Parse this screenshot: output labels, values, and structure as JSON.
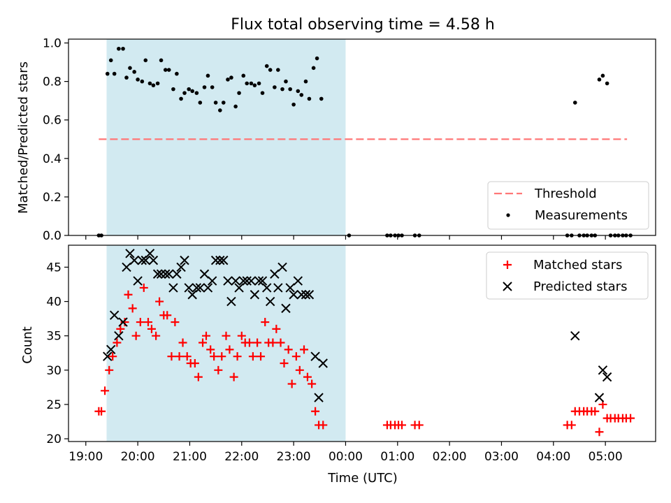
{
  "chart_data": [
    {
      "type": "scatter",
      "title": "Flux total observing time = 4.58 h",
      "ylabel": "Matched/Predicted stars",
      "xlim": [
        "18:40",
        "05:58"
      ],
      "ylim": [
        0,
        1.02
      ],
      "yticks": [
        "0.0",
        "0.2",
        "0.4",
        "0.6",
        "0.8",
        "1.0"
      ],
      "highlight_span": {
        "start": "19:24",
        "end": "00:00",
        "color": "#add8e6"
      },
      "threshold": {
        "value": 0.5,
        "from": "19:15",
        "to": "05:25",
        "color": "#ff7777"
      },
      "legend": {
        "position": "lower right",
        "entries": [
          "Threshold",
          "Measurements"
        ]
      },
      "series": [
        {
          "name": "Measurements",
          "marker": "dot",
          "color": "#000000",
          "points": [
            [
              "19:15",
              0.0
            ],
            [
              "19:18",
              0.0
            ],
            [
              "19:25",
              0.84
            ],
            [
              "19:29",
              0.91
            ],
            [
              "19:33",
              0.84
            ],
            [
              "19:38",
              0.97
            ],
            [
              "19:43",
              0.97
            ],
            [
              "19:47",
              0.82
            ],
            [
              "19:51",
              0.87
            ],
            [
              "19:56",
              0.85
            ],
            [
              "20:00",
              0.81
            ],
            [
              "20:05",
              0.8
            ],
            [
              "20:09",
              0.91
            ],
            [
              "20:14",
              0.79
            ],
            [
              "20:18",
              0.78
            ],
            [
              "20:23",
              0.79
            ],
            [
              "20:27",
              0.91
            ],
            [
              "20:32",
              0.86
            ],
            [
              "20:36",
              0.86
            ],
            [
              "20:41",
              0.76
            ],
            [
              "20:45",
              0.84
            ],
            [
              "20:50",
              0.71
            ],
            [
              "20:54",
              0.74
            ],
            [
              "20:59",
              0.76
            ],
            [
              "21:03",
              0.75
            ],
            [
              "21:08",
              0.74
            ],
            [
              "21:12",
              0.69
            ],
            [
              "21:17",
              0.77
            ],
            [
              "21:21",
              0.83
            ],
            [
              "21:26",
              0.77
            ],
            [
              "21:30",
              0.69
            ],
            [
              "21:35",
              0.65
            ],
            [
              "21:39",
              0.69
            ],
            [
              "21:44",
              0.81
            ],
            [
              "21:48",
              0.82
            ],
            [
              "21:53",
              0.67
            ],
            [
              "21:57",
              0.74
            ],
            [
              "22:02",
              0.83
            ],
            [
              "22:06",
              0.79
            ],
            [
              "22:11",
              0.79
            ],
            [
              "22:15",
              0.78
            ],
            [
              "22:20",
              0.79
            ],
            [
              "22:24",
              0.74
            ],
            [
              "22:29",
              0.88
            ],
            [
              "22:33",
              0.86
            ],
            [
              "22:38",
              0.77
            ],
            [
              "22:42",
              0.86
            ],
            [
              "22:47",
              0.76
            ],
            [
              "22:51",
              0.8
            ],
            [
              "22:56",
              0.76
            ],
            [
              "23:00",
              0.68
            ],
            [
              "23:05",
              0.75
            ],
            [
              "23:09",
              0.73
            ],
            [
              "23:14",
              0.8
            ],
            [
              "23:18",
              0.71
            ],
            [
              "23:23",
              0.87
            ],
            [
              "23:27",
              0.92
            ],
            [
              "23:32",
              0.71
            ],
            [
              "00:04",
              0.0
            ],
            [
              "00:48",
              0.0
            ],
            [
              "00:52",
              0.0
            ],
            [
              "00:57",
              0.0
            ],
            [
              "01:01",
              0.0
            ],
            [
              "01:05",
              0.0
            ],
            [
              "01:20",
              0.0
            ],
            [
              "01:25",
              0.0
            ],
            [
              "04:16",
              0.0
            ],
            [
              "04:21",
              0.0
            ],
            [
              "04:25",
              0.69
            ],
            [
              "04:30",
              0.0
            ],
            [
              "04:35",
              0.0
            ],
            [
              "04:39",
              0.0
            ],
            [
              "04:44",
              0.0
            ],
            [
              "04:48",
              0.0
            ],
            [
              "04:53",
              0.81
            ],
            [
              "04:57",
              0.83
            ],
            [
              "05:02",
              0.79
            ],
            [
              "05:06",
              0.0
            ],
            [
              "05:11",
              0.0
            ],
            [
              "05:15",
              0.0
            ],
            [
              "05:20",
              0.0
            ],
            [
              "05:24",
              0.0
            ],
            [
              "05:29",
              0.0
            ]
          ]
        }
      ]
    },
    {
      "type": "scatter",
      "xlabel": "Time (UTC)",
      "ylabel": "Count",
      "xlim": [
        "18:40",
        "05:58"
      ],
      "ylim": [
        19.6,
        48.2
      ],
      "yticks": [
        "20",
        "25",
        "30",
        "35",
        "40",
        "45"
      ],
      "xticks": [
        "19:00",
        "20:00",
        "21:00",
        "22:00",
        "23:00",
        "00:00",
        "01:00",
        "02:00",
        "03:00",
        "04:00",
        "05:00"
      ],
      "highlight_span": {
        "start": "19:24",
        "end": "00:00",
        "color": "#add8e6"
      },
      "legend": {
        "position": "upper right",
        "entries": [
          "Matched stars",
          "Predicted stars"
        ]
      },
      "series": [
        {
          "name": "Matched stars",
          "marker": "plus",
          "color": "#ff0000",
          "points": [
            [
              "19:15",
              24
            ],
            [
              "19:18",
              24
            ],
            [
              "19:22",
              27
            ],
            [
              "19:27",
              30
            ],
            [
              "19:31",
              32
            ],
            [
              "19:36",
              34
            ],
            [
              "19:40",
              36
            ],
            [
              "19:45",
              37
            ],
            [
              "19:49",
              41
            ],
            [
              "19:54",
              39
            ],
            [
              "19:58",
              35
            ],
            [
              "20:03",
              37
            ],
            [
              "20:07",
              42
            ],
            [
              "20:12",
              37
            ],
            [
              "20:16",
              36
            ],
            [
              "20:21",
              35
            ],
            [
              "20:25",
              40
            ],
            [
              "20:30",
              38
            ],
            [
              "20:34",
              38
            ],
            [
              "20:39",
              32
            ],
            [
              "20:43",
              37
            ],
            [
              "20:48",
              32
            ],
            [
              "20:52",
              34
            ],
            [
              "20:57",
              32
            ],
            [
              "21:01",
              31
            ],
            [
              "21:06",
              31
            ],
            [
              "21:10",
              29
            ],
            [
              "21:15",
              34
            ],
            [
              "21:19",
              35
            ],
            [
              "21:24",
              33
            ],
            [
              "21:28",
              32
            ],
            [
              "21:33",
              30
            ],
            [
              "21:37",
              32
            ],
            [
              "21:42",
              35
            ],
            [
              "21:46",
              33
            ],
            [
              "21:51",
              29
            ],
            [
              "21:55",
              32
            ],
            [
              "22:00",
              35
            ],
            [
              "22:04",
              34
            ],
            [
              "22:09",
              34
            ],
            [
              "22:13",
              32
            ],
            [
              "22:18",
              34
            ],
            [
              "22:22",
              32
            ],
            [
              "22:27",
              37
            ],
            [
              "22:31",
              34
            ],
            [
              "22:36",
              34
            ],
            [
              "22:40",
              36
            ],
            [
              "22:45",
              34
            ],
            [
              "22:49",
              31
            ],
            [
              "22:54",
              33
            ],
            [
              "22:58",
              28
            ],
            [
              "23:03",
              32
            ],
            [
              "23:07",
              30
            ],
            [
              "23:12",
              33
            ],
            [
              "23:16",
              29
            ],
            [
              "23:21",
              28
            ],
            [
              "23:25",
              24
            ],
            [
              "23:29",
              22
            ],
            [
              "23:34",
              22
            ],
            [
              "00:48",
              22
            ],
            [
              "00:52",
              22
            ],
            [
              "00:57",
              22
            ],
            [
              "01:01",
              22
            ],
            [
              "01:05",
              22
            ],
            [
              "01:20",
              22
            ],
            [
              "01:25",
              22
            ],
            [
              "04:16",
              22
            ],
            [
              "04:21",
              22
            ],
            [
              "04:25",
              24
            ],
            [
              "04:30",
              24
            ],
            [
              "04:35",
              24
            ],
            [
              "04:39",
              24
            ],
            [
              "04:44",
              24
            ],
            [
              "04:48",
              24
            ],
            [
              "04:53",
              21
            ],
            [
              "04:57",
              25
            ],
            [
              "05:02",
              23
            ],
            [
              "05:06",
              23
            ],
            [
              "05:11",
              23
            ],
            [
              "05:15",
              23
            ],
            [
              "05:20",
              23
            ],
            [
              "05:24",
              23
            ],
            [
              "05:29",
              23
            ]
          ]
        },
        {
          "name": "Predicted stars",
          "marker": "x",
          "color": "#000000",
          "points": [
            [
              "19:25",
              32
            ],
            [
              "19:29",
              33
            ],
            [
              "19:33",
              38
            ],
            [
              "19:38",
              35
            ],
            [
              "19:43",
              37
            ],
            [
              "19:47",
              45
            ],
            [
              "19:51",
              47
            ],
            [
              "19:56",
              46
            ],
            [
              "20:00",
              43
            ],
            [
              "20:05",
              46
            ],
            [
              "20:09",
              46
            ],
            [
              "20:14",
              47
            ],
            [
              "20:18",
              46
            ],
            [
              "20:23",
              44
            ],
            [
              "20:27",
              44
            ],
            [
              "20:32",
              44
            ],
            [
              "20:36",
              44
            ],
            [
              "20:41",
              42
            ],
            [
              "20:45",
              44
            ],
            [
              "20:50",
              45
            ],
            [
              "20:54",
              46
            ],
            [
              "20:59",
              42
            ],
            [
              "21:03",
              41
            ],
            [
              "21:08",
              42
            ],
            [
              "21:12",
              42
            ],
            [
              "21:17",
              44
            ],
            [
              "21:21",
              42
            ],
            [
              "21:26",
              43
            ],
            [
              "21:30",
              46
            ],
            [
              "21:35",
              46
            ],
            [
              "21:39",
              46
            ],
            [
              "21:44",
              43
            ],
            [
              "21:48",
              40
            ],
            [
              "21:53",
              43
            ],
            [
              "21:57",
              42
            ],
            [
              "22:02",
              43
            ],
            [
              "22:06",
              43
            ],
            [
              "22:11",
              43
            ],
            [
              "22:15",
              41
            ],
            [
              "22:20",
              43
            ],
            [
              "22:24",
              43
            ],
            [
              "22:29",
              42
            ],
            [
              "22:33",
              40
            ],
            [
              "22:38",
              44
            ],
            [
              "22:42",
              42
            ],
            [
              "22:47",
              45
            ],
            [
              "22:51",
              39
            ],
            [
              "22:56",
              42
            ],
            [
              "23:00",
              41
            ],
            [
              "23:05",
              43
            ],
            [
              "23:09",
              41
            ],
            [
              "23:14",
              41
            ],
            [
              "23:18",
              41
            ],
            [
              "23:25",
              32
            ],
            [
              "23:29",
              26
            ],
            [
              "23:34",
              31
            ],
            [
              "04:25",
              35
            ],
            [
              "04:53",
              26
            ],
            [
              "04:57",
              30
            ],
            [
              "05:02",
              29
            ]
          ]
        }
      ]
    }
  ]
}
